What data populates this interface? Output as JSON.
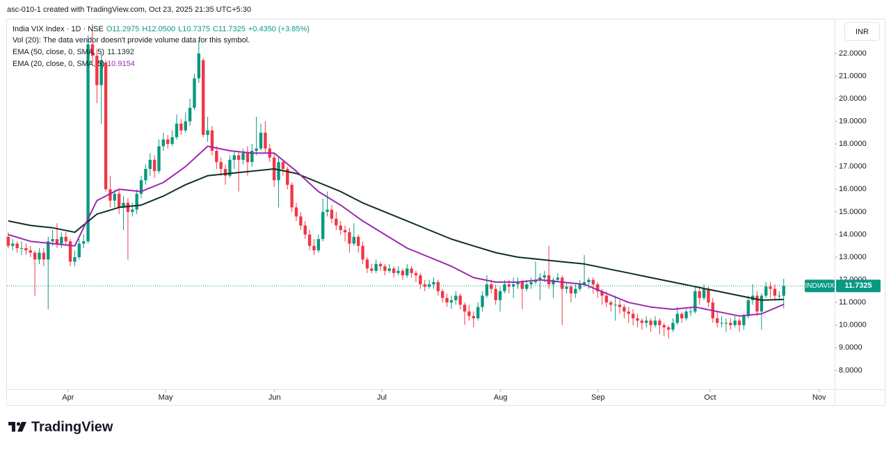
{
  "header": "asc-010-1 created with TradingView.com, Oct 23, 2025 21:35 UTC+5:30",
  "brand": "TradingView",
  "currency": "INR",
  "chart_data": {
    "type": "candlestick",
    "symbol": "India VIX Index · 1D · NSE",
    "ohlc_labels": [
      "O11.2975",
      "H12.0500",
      "L10.7375",
      "C11.7325"
    ],
    "change_label": "+0.4350 (+3.85%)",
    "volume_note": "Vol (20): The data vendor doesn't provide volume data for this symbol.",
    "price_tag": "INDIAVIX",
    "colors": {
      "up": "#089981",
      "down": "#f23645"
    },
    "candles": [
      [
        13.9,
        14.1,
        13.4,
        13.5
      ],
      [
        13.5,
        13.8,
        13.3,
        13.6
      ],
      [
        13.6,
        13.7,
        13.2,
        13.4
      ],
      [
        13.4,
        13.7,
        13.1,
        13.4
      ],
      [
        13.4,
        13.6,
        13.1,
        13.3
      ],
      [
        13.3,
        13.5,
        13.0,
        13.2
      ],
      [
        13.2,
        13.3,
        11.3,
        12.9
      ],
      [
        12.9,
        13.4,
        12.7,
        13.2
      ],
      [
        13.2,
        13.4,
        12.6,
        12.9
      ],
      [
        12.9,
        13.9,
        10.7,
        13.7
      ],
      [
        13.7,
        14.2,
        13.5,
        13.8
      ],
      [
        13.8,
        14.5,
        13.4,
        13.6
      ],
      [
        13.6,
        14.1,
        13.4,
        13.9
      ],
      [
        13.9,
        14.1,
        13.5,
        13.7
      ],
      [
        13.7,
        13.8,
        12.6,
        12.8
      ],
      [
        12.8,
        13.3,
        12.6,
        13.0
      ],
      [
        13.0,
        13.8,
        12.9,
        13.6
      ],
      [
        13.6,
        14.0,
        13.4,
        13.7
      ],
      [
        13.7,
        22.8,
        13.6,
        22.4
      ],
      [
        22.4,
        23.3,
        21.6,
        21.9
      ],
      [
        21.9,
        22.2,
        19.8,
        20.6
      ],
      [
        20.6,
        22.0,
        18.9,
        21.7
      ],
      [
        21.6,
        21.7,
        15.9,
        16.0
      ],
      [
        16.0,
        16.6,
        15.2,
        15.5
      ],
      [
        15.5,
        16.0,
        15.2,
        15.8
      ],
      [
        15.8,
        16.0,
        14.9,
        15.2
      ],
      [
        15.2,
        15.7,
        14.2,
        15.4
      ],
      [
        15.4,
        15.6,
        12.9,
        15.0
      ],
      [
        15.0,
        15.4,
        14.8,
        15.1
      ],
      [
        15.1,
        16.0,
        14.9,
        15.8
      ],
      [
        15.8,
        16.6,
        15.6,
        16.4
      ],
      [
        16.4,
        17.1,
        16.2,
        16.9
      ],
      [
        16.9,
        17.6,
        16.6,
        17.3
      ],
      [
        17.3,
        17.5,
        16.5,
        16.8
      ],
      [
        16.8,
        18.2,
        16.7,
        17.9
      ],
      [
        17.9,
        18.5,
        17.7,
        18.2
      ],
      [
        18.2,
        18.4,
        17.8,
        18.0
      ],
      [
        18.0,
        18.6,
        17.9,
        18.3
      ],
      [
        18.3,
        19.3,
        18.2,
        18.9
      ],
      [
        18.9,
        19.1,
        18.4,
        18.6
      ],
      [
        18.6,
        19.4,
        18.5,
        19.0
      ],
      [
        19.0,
        20.0,
        18.8,
        19.6
      ],
      [
        19.6,
        21.1,
        19.5,
        20.9
      ],
      [
        20.9,
        22.6,
        20.7,
        22.0
      ],
      [
        21.7,
        21.8,
        18.3,
        18.4
      ],
      [
        18.4,
        19.2,
        18.1,
        18.6
      ],
      [
        18.6,
        18.8,
        17.5,
        17.7
      ],
      [
        17.7,
        17.9,
        16.9,
        17.2
      ],
      [
        17.2,
        17.4,
        16.6,
        16.9
      ],
      [
        16.9,
        17.1,
        16.2,
        16.6
      ],
      [
        16.6,
        17.5,
        16.5,
        17.3
      ],
      [
        17.3,
        17.7,
        16.9,
        17.5
      ],
      [
        17.5,
        17.7,
        15.9,
        17.3
      ],
      [
        17.3,
        17.8,
        17.1,
        17.6
      ],
      [
        17.6,
        17.9,
        16.6,
        17.2
      ],
      [
        17.2,
        18.0,
        17.0,
        17.7
      ],
      [
        17.7,
        19.2,
        17.5,
        17.8
      ],
      [
        17.8,
        18.9,
        17.7,
        18.5
      ],
      [
        18.5,
        19.0,
        17.6,
        17.8
      ],
      [
        17.8,
        18.0,
        17.2,
        17.4
      ],
      [
        17.4,
        17.6,
        16.1,
        16.4
      ],
      [
        16.4,
        17.4,
        15.2,
        17.2
      ],
      [
        17.2,
        17.3,
        16.6,
        16.9
      ],
      [
        16.9,
        17.0,
        16.0,
        16.2
      ],
      [
        16.2,
        16.3,
        15.0,
        15.2
      ],
      [
        15.2,
        15.4,
        14.6,
        14.8
      ],
      [
        14.8,
        15.0,
        14.2,
        14.4
      ],
      [
        14.4,
        14.6,
        13.8,
        14.0
      ],
      [
        14.0,
        14.2,
        13.3,
        13.5
      ],
      [
        13.5,
        13.8,
        13.1,
        13.3
      ],
      [
        13.3,
        14.0,
        13.2,
        13.8
      ],
      [
        13.8,
        15.6,
        13.7,
        15.0
      ],
      [
        15.0,
        15.9,
        14.8,
        15.1
      ],
      [
        15.1,
        15.3,
        14.5,
        14.7
      ],
      [
        14.7,
        15.0,
        14.2,
        14.4
      ],
      [
        14.4,
        14.6,
        14.0,
        14.2
      ],
      [
        14.2,
        14.4,
        13.7,
        14.1
      ],
      [
        14.1,
        14.3,
        13.2,
        13.6
      ],
      [
        13.6,
        14.5,
        13.5,
        13.9
      ],
      [
        13.9,
        14.0,
        13.2,
        13.5
      ],
      [
        13.5,
        13.7,
        12.7,
        12.9
      ],
      [
        12.9,
        13.0,
        12.3,
        12.5
      ],
      [
        12.5,
        12.7,
        12.3,
        12.4
      ],
      [
        12.4,
        12.9,
        12.3,
        12.7
      ],
      [
        12.7,
        12.8,
        12.4,
        12.6
      ],
      [
        12.6,
        12.7,
        12.2,
        12.4
      ],
      [
        12.4,
        12.7,
        12.3,
        12.5
      ],
      [
        12.5,
        12.6,
        12.1,
        12.3
      ],
      [
        12.3,
        12.6,
        12.2,
        12.4
      ],
      [
        12.4,
        12.5,
        12.0,
        12.2
      ],
      [
        12.2,
        12.7,
        12.1,
        12.5
      ],
      [
        12.5,
        12.6,
        12.1,
        12.3
      ],
      [
        12.3,
        12.4,
        11.9,
        12.2
      ],
      [
        12.2,
        12.3,
        11.6,
        11.8
      ],
      [
        11.8,
        12.0,
        11.5,
        11.7
      ],
      [
        11.7,
        12.0,
        11.6,
        11.8
      ],
      [
        11.8,
        12.1,
        11.6,
        11.9
      ],
      [
        11.9,
        12.0,
        11.3,
        11.5
      ],
      [
        11.5,
        11.6,
        11.0,
        11.2
      ],
      [
        11.2,
        11.4,
        10.8,
        11.0
      ],
      [
        11.0,
        11.3,
        10.7,
        11.1
      ],
      [
        11.1,
        11.5,
        10.9,
        11.3
      ],
      [
        11.3,
        11.4,
        10.7,
        10.9
      ],
      [
        10.9,
        11.0,
        10.0,
        10.6
      ],
      [
        10.6,
        10.9,
        10.2,
        10.4
      ],
      [
        10.4,
        10.6,
        9.9,
        10.3
      ],
      [
        10.3,
        11.0,
        10.2,
        10.8
      ],
      [
        10.8,
        11.5,
        10.6,
        11.3
      ],
      [
        11.3,
        12.2,
        11.2,
        11.8
      ],
      [
        11.8,
        12.0,
        11.4,
        11.6
      ],
      [
        11.6,
        11.8,
        10.9,
        11.1
      ],
      [
        11.1,
        11.7,
        10.6,
        11.5
      ],
      [
        11.5,
        12.0,
        11.4,
        11.8
      ],
      [
        11.8,
        12.0,
        11.4,
        11.7
      ],
      [
        11.7,
        12.1,
        11.2,
        11.8
      ],
      [
        11.8,
        12.1,
        11.6,
        11.9
      ],
      [
        11.9,
        12.0,
        10.7,
        11.6
      ],
      [
        11.6,
        12.0,
        11.5,
        11.8
      ],
      [
        11.8,
        12.1,
        11.6,
        11.9
      ],
      [
        11.9,
        12.8,
        11.8,
        12.0
      ],
      [
        12.0,
        12.3,
        11.1,
        12.1
      ],
      [
        12.1,
        12.4,
        11.9,
        12.2
      ],
      [
        12.2,
        13.5,
        11.6,
        11.8
      ],
      [
        11.8,
        12.1,
        11.2,
        12.0
      ],
      [
        12.0,
        12.3,
        11.9,
        12.1
      ],
      [
        12.1,
        12.2,
        10.0,
        11.6
      ],
      [
        11.6,
        11.9,
        11.4,
        11.7
      ],
      [
        11.7,
        11.8,
        11.0,
        11.4
      ],
      [
        11.4,
        11.8,
        11.2,
        11.6
      ],
      [
        11.6,
        12.0,
        11.5,
        11.8
      ],
      [
        11.8,
        13.1,
        11.7,
        11.9
      ],
      [
        11.9,
        12.1,
        11.6,
        12.0
      ],
      [
        12.0,
        12.1,
        11.4,
        11.8
      ],
      [
        11.8,
        11.9,
        11.2,
        11.5
      ],
      [
        11.5,
        11.6,
        10.9,
        11.3
      ],
      [
        11.3,
        11.5,
        10.8,
        11.0
      ],
      [
        11.0,
        11.1,
        10.6,
        10.9
      ],
      [
        10.9,
        11.3,
        10.2,
        10.9
      ],
      [
        10.9,
        11.1,
        10.5,
        10.8
      ],
      [
        10.8,
        10.9,
        10.3,
        10.6
      ],
      [
        10.6,
        10.8,
        10.1,
        10.5
      ],
      [
        10.5,
        10.7,
        10.0,
        10.3
      ],
      [
        10.3,
        10.5,
        9.9,
        10.2
      ],
      [
        10.2,
        10.3,
        9.8,
        10.1
      ],
      [
        10.1,
        10.4,
        9.9,
        10.2
      ],
      [
        10.2,
        10.3,
        9.7,
        10.0
      ],
      [
        10.0,
        10.4,
        9.9,
        10.2
      ],
      [
        10.2,
        10.3,
        9.6,
        10.0
      ],
      [
        10.0,
        10.1,
        9.5,
        9.9
      ],
      [
        9.9,
        10.0,
        9.4,
        9.8
      ],
      [
        9.8,
        10.3,
        9.7,
        10.1
      ],
      [
        10.1,
        10.8,
        10.0,
        10.5
      ],
      [
        10.5,
        10.6,
        10.1,
        10.3
      ],
      [
        10.3,
        10.7,
        10.2,
        10.6
      ],
      [
        10.6,
        10.8,
        10.4,
        10.6
      ],
      [
        10.6,
        11.7,
        10.5,
        11.5
      ],
      [
        11.5,
        11.7,
        10.9,
        11.2
      ],
      [
        11.2,
        11.8,
        11.1,
        11.6
      ],
      [
        11.6,
        11.7,
        10.8,
        11.0
      ],
      [
        11.0,
        11.2,
        10.1,
        10.3
      ],
      [
        10.3,
        10.6,
        9.9,
        10.1
      ],
      [
        10.1,
        10.4,
        9.9,
        10.1
      ],
      [
        10.1,
        10.3,
        9.7,
        10.1
      ],
      [
        10.1,
        10.3,
        9.8,
        10.0
      ],
      [
        10.0,
        10.4,
        9.9,
        10.2
      ],
      [
        10.2,
        10.3,
        9.7,
        10.0
      ],
      [
        10.0,
        10.5,
        9.8,
        10.4
      ],
      [
        10.4,
        11.3,
        10.3,
        11.1
      ],
      [
        11.1,
        11.8,
        10.9,
        11.3
      ],
      [
        11.3,
        11.5,
        10.4,
        10.6
      ],
      [
        10.6,
        11.4,
        9.8,
        11.3
      ],
      [
        11.3,
        11.9,
        11.2,
        11.7
      ],
      [
        11.7,
        11.9,
        11.2,
        11.6
      ],
      [
        11.6,
        11.8,
        11.1,
        11.3
      ],
      [
        11.3,
        11.5,
        11.1,
        11.3
      ],
      [
        11.2975,
        12.05,
        10.7375,
        11.7325
      ]
    ],
    "series": [
      {
        "name": "EMA (50, close, 0, SMA, 5)",
        "color": "#0f2e26",
        "x": [
          0,
          5,
          10,
          15,
          20,
          25,
          30,
          35,
          40,
          45,
          50,
          55,
          60,
          65,
          70,
          75,
          80,
          85,
          90,
          95,
          100,
          105,
          110,
          115,
          120,
          125,
          130,
          135,
          140,
          145,
          150,
          155,
          160,
          165,
          170,
          175
        ],
        "values": [
          14.6,
          14.4,
          14.3,
          14.1,
          14.9,
          15.2,
          15.3,
          15.7,
          16.2,
          16.6,
          16.7,
          16.8,
          16.9,
          16.7,
          16.3,
          15.9,
          15.4,
          15.0,
          14.6,
          14.2,
          13.8,
          13.5,
          13.2,
          13.0,
          12.9,
          12.8,
          12.7,
          12.5,
          12.3,
          12.1,
          11.9,
          11.7,
          11.5,
          11.3,
          11.1,
          11.1392
        ]
      },
      {
        "name": "EMA (20, close, 0, SMA, 5)",
        "color": "#9c27b0",
        "x": [
          0,
          5,
          10,
          15,
          20,
          25,
          30,
          35,
          40,
          45,
          50,
          55,
          60,
          65,
          70,
          75,
          80,
          85,
          90,
          95,
          100,
          105,
          110,
          115,
          120,
          125,
          130,
          135,
          140,
          145,
          150,
          155,
          160,
          165,
          170,
          175
        ],
        "values": [
          14.0,
          13.7,
          13.6,
          13.5,
          15.5,
          16.0,
          15.9,
          16.3,
          17.0,
          17.9,
          17.7,
          17.6,
          17.6,
          16.8,
          15.9,
          15.3,
          14.6,
          14.0,
          13.4,
          13.0,
          12.6,
          12.1,
          11.9,
          11.9,
          12.0,
          11.9,
          11.8,
          11.4,
          11.0,
          10.8,
          10.7,
          10.8,
          10.6,
          10.4,
          10.5,
          10.9154
        ]
      }
    ],
    "xlim": [
      -0.3,
      186.5
    ],
    "xticks": [
      {
        "value": 13.5,
        "label": "Apr"
      },
      {
        "value": 35.5,
        "label": "May"
      },
      {
        "value": 60.1,
        "label": "Jun"
      },
      {
        "value": 84.3,
        "label": "Jul"
      },
      {
        "value": 111.1,
        "label": "Aug"
      },
      {
        "value": 133.1,
        "label": "Sep"
      },
      {
        "value": 158.4,
        "label": "Oct"
      },
      {
        "value": 183.0,
        "label": "Nov"
      }
    ],
    "ylim": [
      7.23,
      23.5
    ],
    "yticks": [
      {
        "value": 8,
        "label": "8.0000"
      },
      {
        "value": 9,
        "label": "9.0000"
      },
      {
        "value": 10,
        "label": "10.0000"
      },
      {
        "value": 11,
        "label": "11.0000"
      },
      {
        "value": 12,
        "label": "12.0000"
      },
      {
        "value": 13,
        "label": "13.0000"
      },
      {
        "value": 14,
        "label": "14.0000"
      },
      {
        "value": 15,
        "label": "15.0000"
      },
      {
        "value": 16,
        "label": "16.0000"
      },
      {
        "value": 17,
        "label": "17.0000"
      },
      {
        "value": 18,
        "label": "18.0000"
      },
      {
        "value": 19,
        "label": "19.0000"
      },
      {
        "value": 20,
        "label": "20.0000"
      },
      {
        "value": 21,
        "label": "21.0000"
      },
      {
        "value": 22,
        "label": "22.0000"
      }
    ],
    "grid": false
  }
}
